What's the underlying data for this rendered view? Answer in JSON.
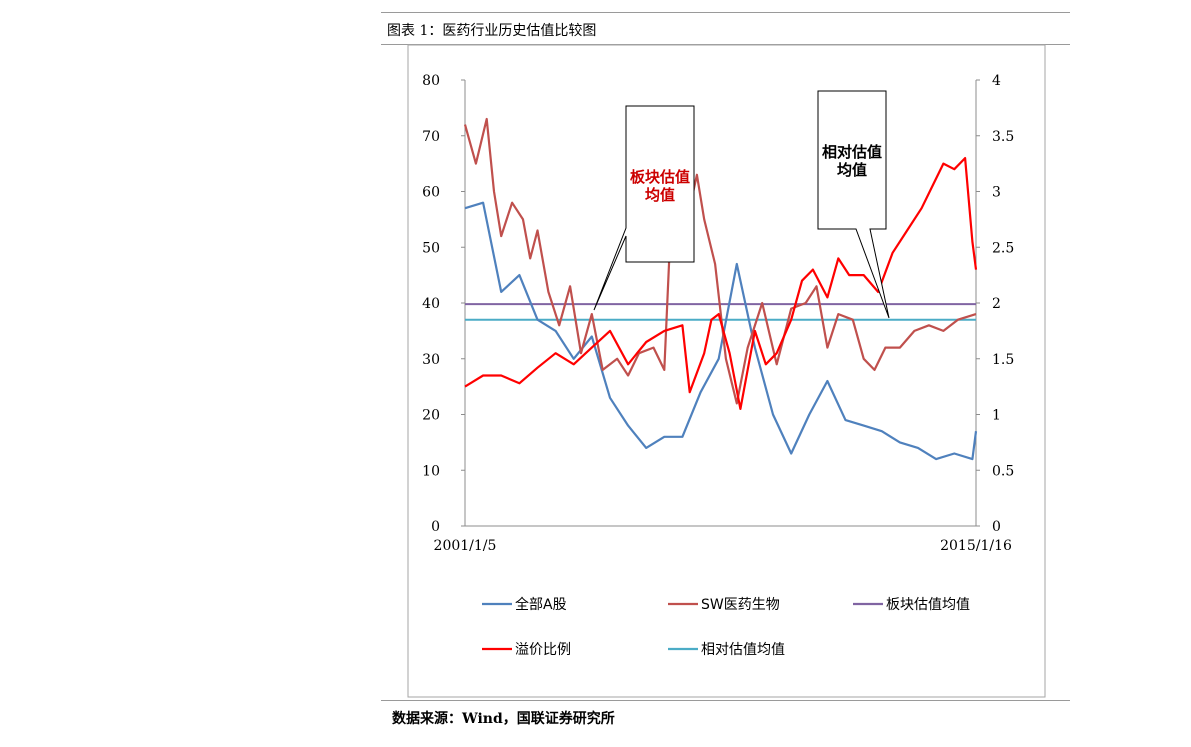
{
  "figure_title": "图表 1：医药行业历史估值比较图",
  "source": "数据来源：Wind，国联证券研究所",
  "chart_data": {
    "type": "line",
    "x_labels": [
      "2001/1/5",
      "2015/1/16"
    ],
    "x_range": [
      "2001/1/5",
      "2015/1/16"
    ],
    "y_left": {
      "range": [
        0,
        80
      ],
      "ticks": [
        "0",
        "10",
        "20",
        "30",
        "40",
        "50",
        "60",
        "70",
        "80"
      ]
    },
    "y_right": {
      "range": [
        0,
        4
      ],
      "ticks": [
        "0",
        "0.5",
        "1",
        "1.5",
        "2",
        "2.5",
        "3",
        "3.5",
        "4"
      ]
    },
    "grid": false,
    "legend_position": "bottom",
    "series": [
      {
        "name": "全部A股",
        "axis": "left",
        "color": "#4f81bd",
        "x": [
          0.0,
          0.5,
          1,
          1.5,
          2,
          2.5,
          3,
          3.5,
          4,
          4.5,
          5,
          5.5,
          6,
          6.5,
          7,
          7.5,
          8,
          8.5,
          9,
          9.5,
          10,
          10.5,
          11,
          11.5,
          12,
          12.5,
          13,
          13.5,
          14,
          14.1
        ],
        "y": [
          57,
          58,
          42,
          45,
          37,
          35,
          30,
          34,
          23,
          18,
          14,
          16,
          16,
          24,
          30,
          47,
          32,
          20,
          13,
          20,
          26,
          19,
          18,
          17,
          15,
          14,
          12,
          13,
          12,
          17
        ]
      },
      {
        "name": "SW医药生物",
        "axis": "left",
        "color": "#c0504d",
        "x": [
          0.0,
          0.3,
          0.6,
          0.8,
          1,
          1.3,
          1.6,
          1.8,
          2,
          2.3,
          2.6,
          2.9,
          3.2,
          3.5,
          3.8,
          4.2,
          4.5,
          4.8,
          5.2,
          5.5,
          5.8,
          6.2,
          6.4,
          6.6,
          6.9,
          7.2,
          7.5,
          7.8,
          8.2,
          8.6,
          9,
          9.4,
          9.7,
          10,
          10.3,
          10.7,
          11,
          11.3,
          11.6,
          12,
          12.4,
          12.8,
          13.2,
          13.6,
          14.1
        ],
        "y": [
          72,
          65,
          73,
          60,
          52,
          58,
          55,
          48,
          53,
          42,
          36,
          43,
          31,
          38,
          28,
          30,
          27,
          31,
          32,
          28,
          72,
          57,
          63,
          55,
          47,
          30,
          22,
          32,
          40,
          29,
          39,
          40,
          43,
          32,
          38,
          37,
          30,
          28,
          32,
          32,
          35,
          36,
          35,
          37,
          38
        ]
      },
      {
        "name": "板块估值均值",
        "axis": "left",
        "color": "#8064a2",
        "x": [
          0,
          14.1
        ],
        "y": [
          39.8,
          39.8
        ]
      },
      {
        "name": "溢价比例",
        "axis": "right",
        "color": "#ff0000",
        "x": [
          0.0,
          0.5,
          1,
          1.5,
          2,
          2.5,
          3,
          3.5,
          4,
          4.5,
          5,
          5.5,
          6,
          6.2,
          6.6,
          6.8,
          7,
          7.3,
          7.6,
          8,
          8.3,
          8.6,
          9,
          9.3,
          9.6,
          10,
          10.3,
          10.6,
          11,
          11.4,
          11.8,
          12.2,
          12.6,
          12.9,
          13.2,
          13.5,
          13.8,
          14.0,
          14.1
        ],
        "y": [
          1.25,
          1.35,
          1.35,
          1.28,
          1.42,
          1.55,
          1.45,
          1.6,
          1.75,
          1.45,
          1.65,
          1.75,
          1.8,
          1.2,
          1.55,
          1.85,
          1.9,
          1.55,
          1.05,
          1.75,
          1.45,
          1.55,
          1.85,
          2.2,
          2.3,
          2.05,
          2.4,
          2.25,
          2.25,
          2.1,
          2.45,
          2.65,
          2.85,
          3.05,
          3.25,
          3.2,
          3.3,
          2.55,
          2.3
        ]
      },
      {
        "name": "相对估值均值",
        "axis": "right",
        "color": "#4bacc6",
        "x": [
          0,
          14.1
        ],
        "y": [
          1.85,
          1.85
        ]
      }
    ],
    "annotations": [
      {
        "text_lines": [
          "板块估值",
          "均值"
        ],
        "color": "#cc0000",
        "points_to": "板块估值均值"
      },
      {
        "text_lines": [
          "相对估值",
          "均值"
        ],
        "color": "#000000",
        "points_to": "相对估值均值"
      }
    ]
  }
}
